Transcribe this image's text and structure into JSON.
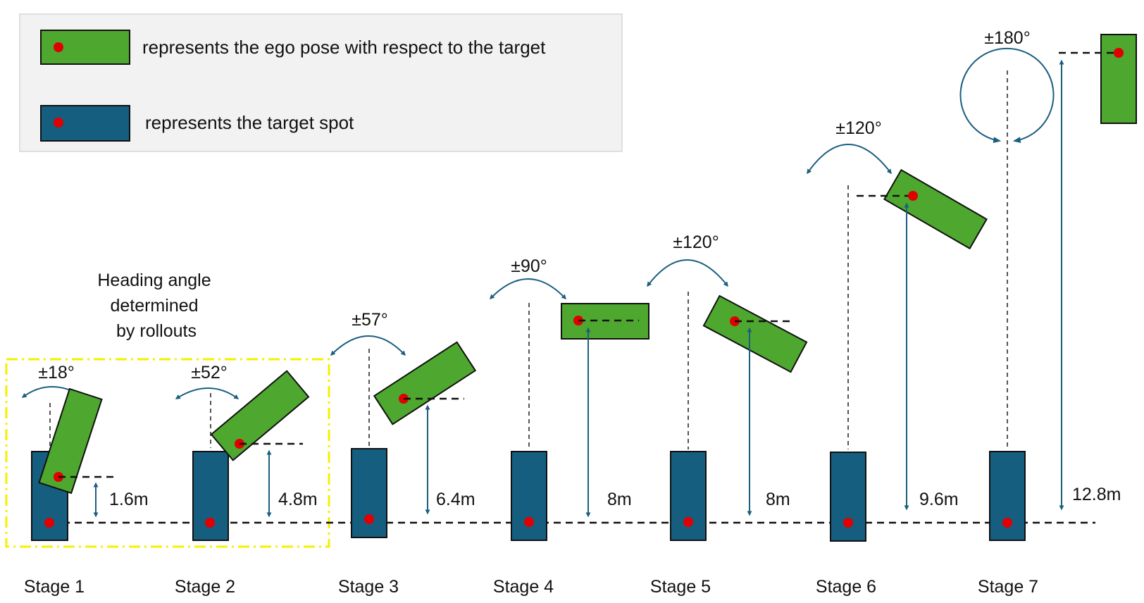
{
  "legend": {
    "ego_text": "represents the ego pose with respect to the target",
    "target_text": "represents the target spot"
  },
  "note": {
    "lines": [
      "Heading angle",
      "determined",
      "by rollouts"
    ]
  },
  "stages": [
    {
      "label": "Stage 1",
      "angle": "±18°",
      "distance": "1.6m"
    },
    {
      "label": "Stage 2",
      "angle": "±52°",
      "distance": "4.8m"
    },
    {
      "label": "Stage 3",
      "angle": "±57°",
      "distance": "6.4m"
    },
    {
      "label": "Stage 4",
      "angle": "±90°",
      "distance": "8m"
    },
    {
      "label": "Stage 5",
      "angle": "±120°",
      "distance": "8m"
    },
    {
      "label": "Stage 6",
      "angle": "±120°",
      "distance": "9.6m"
    },
    {
      "label": "Stage 7",
      "angle": "±180°",
      "distance": "12.8m"
    }
  ],
  "colors": {
    "ego": "#4ea72e",
    "target": "#155e7f",
    "dot": "#e00000",
    "arrow": "#1b5e80",
    "highlight": "#f5f000",
    "legend_bg": "#f2f2f2"
  }
}
